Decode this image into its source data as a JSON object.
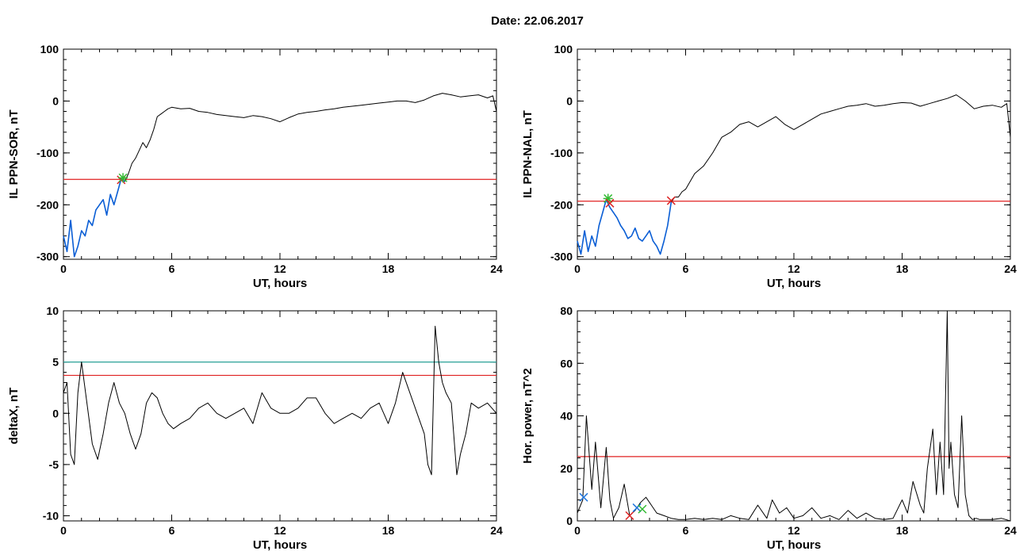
{
  "title": "Date:  22.06.2017",
  "colors": {
    "trace": "#000000",
    "highlight": "#0b5fd6",
    "threshold": "#e02020",
    "threshold2": "#2aa198",
    "marker_green": "#33bb33",
    "marker_red": "#dd2222",
    "marker_blue": "#2277dd"
  },
  "chart_data": [
    {
      "type": "line",
      "xlabel": "UT, hours",
      "ylabel": "IL PPN-SOR, nT",
      "xlim": [
        0,
        24
      ],
      "ylim": [
        -305,
        100
      ],
      "xticks": [
        0,
        6,
        12,
        18,
        24
      ],
      "yticks": [
        -300,
        -200,
        -100,
        0,
        100
      ],
      "x": [
        0,
        0.2,
        0.4,
        0.6,
        0.8,
        1.0,
        1.2,
        1.4,
        1.6,
        1.8,
        2.0,
        2.2,
        2.4,
        2.6,
        2.8,
        3.0,
        3.2,
        3.4,
        3.6,
        3.8,
        4.0,
        4.2,
        4.4,
        4.6,
        4.8,
        5.0,
        5.2,
        5.4,
        5.6,
        5.8,
        6.0,
        6.5,
        7.0,
        7.5,
        8.0,
        8.5,
        9.0,
        9.5,
        10.0,
        10.5,
        11.0,
        11.5,
        12.0,
        12.5,
        13.0,
        13.5,
        14.0,
        14.5,
        15.0,
        15.5,
        16.0,
        16.5,
        17.0,
        17.5,
        18.0,
        18.5,
        19.0,
        19.5,
        20.0,
        20.5,
        21.0,
        21.5,
        22.0,
        22.5,
        23.0,
        23.5,
        23.8,
        24.0
      ],
      "values": [
        -260,
        -290,
        -230,
        -300,
        -280,
        -250,
        -260,
        -230,
        -240,
        -210,
        -200,
        -190,
        -220,
        -180,
        -200,
        -175,
        -150,
        -155,
        -140,
        -120,
        -110,
        -95,
        -80,
        -90,
        -75,
        -55,
        -30,
        -25,
        -20,
        -15,
        -12,
        -15,
        -14,
        -20,
        -22,
        -26,
        -28,
        -30,
        -32,
        -28,
        -30,
        -34,
        -40,
        -32,
        -25,
        -22,
        -20,
        -17,
        -15,
        -12,
        -10,
        -8,
        -6,
        -4,
        -2,
        0,
        0,
        -3,
        2,
        10,
        15,
        12,
        8,
        10,
        12,
        6,
        10,
        -20
      ],
      "highlight_range": [
        0,
        3.4
      ],
      "threshold": -151,
      "markers": [
        {
          "x": 3.2,
          "y": -152,
          "kind": "x"
        },
        {
          "x": 3.3,
          "y": -148,
          "kind": "star"
        }
      ]
    },
    {
      "type": "line",
      "xlabel": "UT, hours",
      "ylabel": "IL PPN-NAL, nT",
      "xlim": [
        0,
        24
      ],
      "ylim": [
        -305,
        100
      ],
      "xticks": [
        0,
        6,
        12,
        18,
        24
      ],
      "yticks": [
        -300,
        -200,
        -100,
        0,
        100
      ],
      "x": [
        0,
        0.2,
        0.4,
        0.6,
        0.8,
        1.0,
        1.2,
        1.4,
        1.6,
        1.8,
        2.0,
        2.2,
        2.4,
        2.6,
        2.8,
        3.0,
        3.2,
        3.4,
        3.6,
        3.8,
        4.0,
        4.2,
        4.4,
        4.6,
        4.8,
        5.0,
        5.2,
        5.4,
        5.6,
        5.8,
        6.0,
        6.5,
        7.0,
        7.5,
        8.0,
        8.5,
        9.0,
        9.5,
        10.0,
        10.5,
        11.0,
        11.5,
        12.0,
        12.5,
        13.0,
        13.5,
        14.0,
        14.5,
        15.0,
        15.5,
        16.0,
        16.5,
        17.0,
        17.5,
        18.0,
        18.5,
        19.0,
        19.5,
        20.0,
        20.5,
        21.0,
        21.5,
        22.0,
        22.5,
        23.0,
        23.5,
        23.8,
        24.0
      ],
      "values": [
        -270,
        -295,
        -250,
        -290,
        -260,
        -280,
        -240,
        -215,
        -190,
        -205,
        -215,
        -225,
        -240,
        -250,
        -265,
        -260,
        -245,
        -265,
        -270,
        -260,
        -250,
        -270,
        -280,
        -295,
        -270,
        -240,
        -195,
        -185,
        -185,
        -175,
        -170,
        -140,
        -125,
        -100,
        -70,
        -60,
        -45,
        -40,
        -50,
        -40,
        -30,
        -45,
        -55,
        -45,
        -35,
        -25,
        -20,
        -15,
        -10,
        -8,
        -5,
        -10,
        -8,
        -5,
        -3,
        -4,
        -10,
        -5,
        0,
        5,
        12,
        0,
        -15,
        -10,
        -8,
        -12,
        -5,
        -70
      ],
      "highlight_range": [
        0,
        5.3
      ],
      "threshold": -193,
      "markers": [
        {
          "x": 1.7,
          "y": -188,
          "kind": "star"
        },
        {
          "x": 1.8,
          "y": -197,
          "kind": "x"
        },
        {
          "x": 5.2,
          "y": -192,
          "kind": "x"
        }
      ]
    },
    {
      "type": "line",
      "xlabel": "UT, hours",
      "ylabel": "deltaX, nT",
      "xlim": [
        0,
        24
      ],
      "ylim": [
        -10.5,
        10
      ],
      "xticks": [
        0,
        6,
        12,
        18,
        24
      ],
      "yticks": [
        -10,
        -5,
        0,
        5,
        10
      ],
      "x": [
        0,
        0.2,
        0.4,
        0.6,
        0.8,
        1.0,
        1.3,
        1.6,
        1.9,
        2.2,
        2.5,
        2.8,
        3.1,
        3.4,
        3.7,
        4.0,
        4.3,
        4.6,
        4.9,
        5.2,
        5.5,
        5.8,
        6.1,
        6.5,
        7.0,
        7.5,
        8.0,
        8.5,
        9.0,
        9.5,
        10.0,
        10.5,
        11.0,
        11.5,
        12.0,
        12.5,
        13.0,
        13.5,
        14.0,
        14.5,
        15.0,
        15.5,
        16.0,
        16.5,
        17.0,
        17.5,
        18.0,
        18.4,
        18.8,
        19.2,
        19.6,
        20.0,
        20.2,
        20.4,
        20.6,
        20.8,
        21.0,
        21.2,
        21.5,
        21.8,
        22.0,
        22.3,
        22.6,
        23.0,
        23.5,
        24.0
      ],
      "values": [
        2,
        3,
        -4,
        -5,
        2,
        5,
        1,
        -3,
        -4.5,
        -2,
        1,
        3,
        1,
        0,
        -2,
        -3.5,
        -2,
        1,
        2,
        1.5,
        0,
        -1,
        -1.5,
        -1,
        -0.5,
        0.5,
        1,
        0,
        -0.5,
        0,
        0.5,
        -1,
        2,
        0.5,
        0,
        0,
        0.5,
        1.5,
        1.5,
        0,
        -1,
        -0.5,
        0,
        -0.5,
        0.5,
        1,
        -1,
        1,
        4,
        2,
        0,
        -2,
        -5,
        -6,
        8.5,
        5,
        3,
        2,
        1,
        -6,
        -4,
        -2,
        1,
        0.5,
        1,
        0
      ],
      "threshold": 3.7,
      "threshold2": 5
    },
    {
      "type": "line",
      "xlabel": "UT, hours",
      "ylabel": "Hor. power, nT^2",
      "xlim": [
        0,
        24
      ],
      "ylim": [
        0,
        80
      ],
      "xticks": [
        0,
        6,
        12,
        18,
        24
      ],
      "yticks": [
        0,
        20,
        40,
        60,
        80
      ],
      "x": [
        0,
        0.3,
        0.5,
        0.8,
        1.0,
        1.3,
        1.6,
        1.8,
        2.0,
        2.3,
        2.6,
        2.9,
        3.2,
        3.5,
        3.8,
        4.1,
        4.4,
        4.8,
        5.2,
        5.6,
        6.0,
        6.5,
        7.0,
        7.5,
        8.0,
        8.5,
        9.0,
        9.5,
        10.0,
        10.5,
        10.8,
        11.2,
        11.6,
        12.0,
        12.5,
        13.0,
        13.5,
        14.0,
        14.5,
        15.0,
        15.5,
        16.0,
        16.5,
        17.0,
        17.5,
        18.0,
        18.3,
        18.6,
        19.0,
        19.2,
        19.4,
        19.7,
        19.9,
        20.1,
        20.3,
        20.5,
        20.6,
        20.7,
        20.9,
        21.1,
        21.3,
        21.5,
        21.7,
        21.9,
        22.1,
        22.3,
        22.6,
        23.0,
        23.5,
        24.0
      ],
      "values": [
        3,
        8,
        40,
        12,
        30,
        5,
        28,
        8,
        1,
        5,
        14,
        2,
        4,
        7,
        9,
        6,
        3,
        2,
        1,
        0.5,
        0.5,
        1,
        0.5,
        1,
        0.5,
        2,
        1,
        0.5,
        6,
        1,
        8,
        3,
        5,
        1,
        2,
        5,
        1,
        2,
        0.5,
        4,
        1,
        3,
        1,
        0.5,
        1,
        8,
        3,
        15,
        6,
        3,
        20,
        35,
        10,
        30,
        10,
        80,
        20,
        30,
        10,
        5,
        40,
        10,
        2,
        0.5,
        1,
        0.5,
        0.5,
        0.5,
        1,
        0
      ],
      "threshold": 24.5,
      "markers": [
        {
          "x": 0.35,
          "y": 9,
          "kind": "x-blue"
        },
        {
          "x": 2.9,
          "y": 2,
          "kind": "x-red"
        },
        {
          "x": 3.3,
          "y": 5,
          "kind": "x-blue"
        },
        {
          "x": 3.6,
          "y": 4.5,
          "kind": "x-green"
        }
      ]
    }
  ]
}
